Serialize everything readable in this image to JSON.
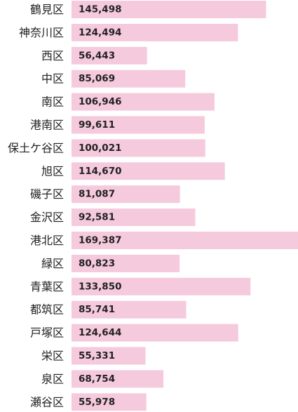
{
  "chart_data": {
    "type": "bar",
    "orientation": "horizontal",
    "categories": [
      "鶴見区",
      "神奈川区",
      "西区",
      "中区",
      "南区",
      "港南区",
      "保土ケ谷区",
      "旭区",
      "磯子区",
      "金沢区",
      "港北区",
      "緑区",
      "青葉区",
      "都筑区",
      "戸塚区",
      "栄区",
      "泉区",
      "瀬谷区"
    ],
    "values": [
      145498,
      124494,
      56443,
      85069,
      106946,
      99611,
      100021,
      114670,
      81087,
      92581,
      169387,
      80823,
      133850,
      85741,
      124644,
      55331,
      68754,
      55978
    ],
    "value_labels": [
      "145,498",
      "124,494",
      "56,443",
      "85,069",
      "106,946",
      "99,611",
      "100,021",
      "114,670",
      "81,087",
      "92,581",
      "169,387",
      "80,823",
      "133,850",
      "85,741",
      "124,644",
      "55,331",
      "68,754",
      "55,978"
    ],
    "xlim": [
      0,
      169387
    ],
    "grid": false,
    "legend": "none",
    "bar_color": "#f5cadc",
    "text_color": "#222222"
  }
}
